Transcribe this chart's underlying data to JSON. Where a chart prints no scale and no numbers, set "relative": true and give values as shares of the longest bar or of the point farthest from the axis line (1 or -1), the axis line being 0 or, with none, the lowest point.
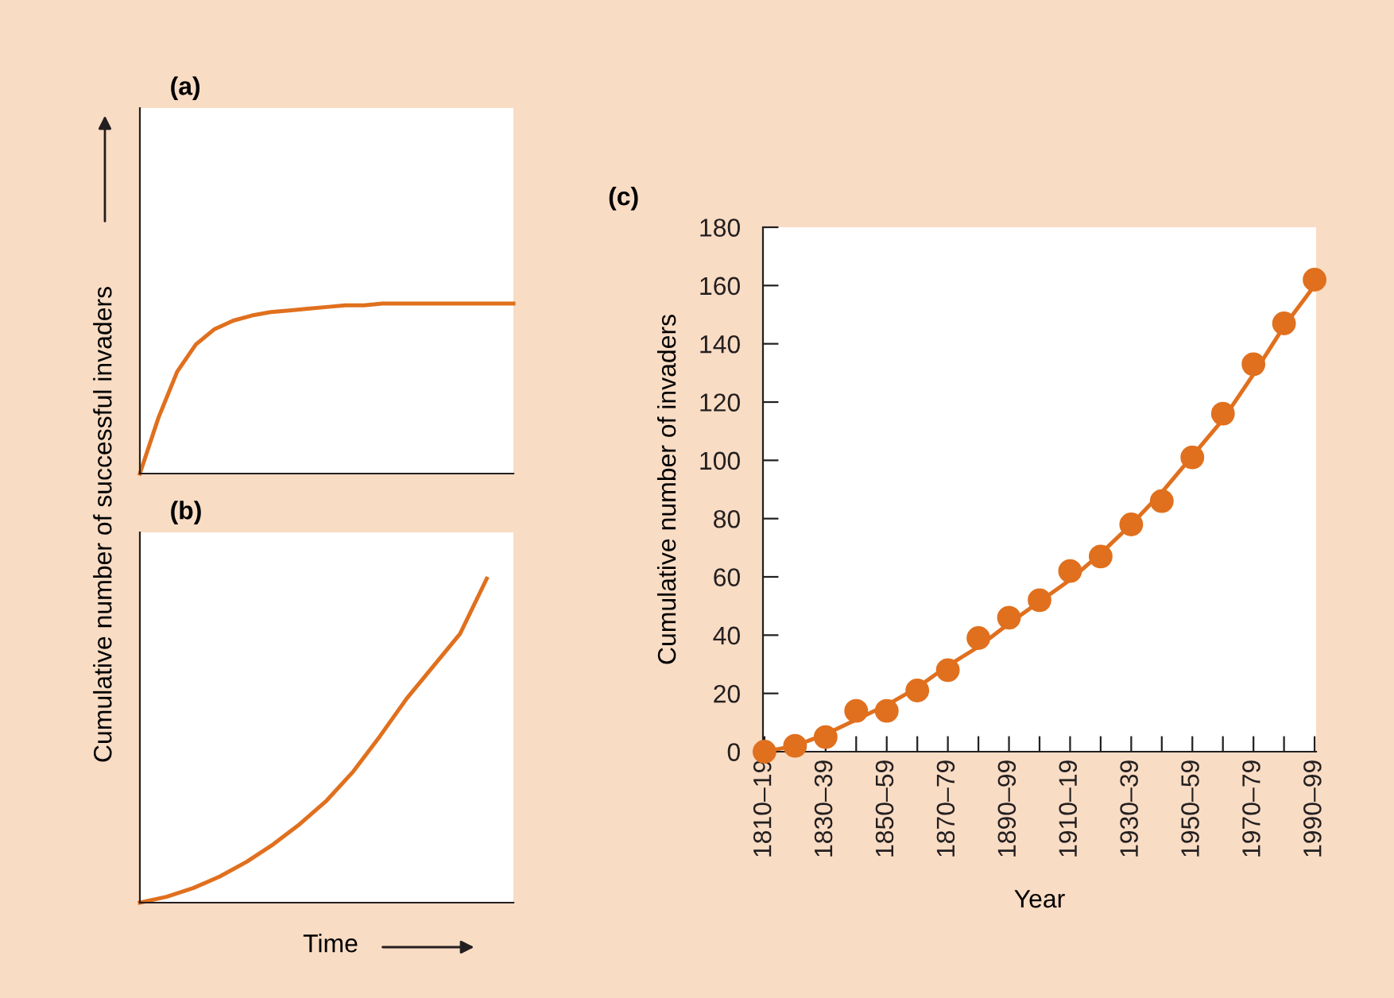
{
  "chart_data": [
    {
      "type": "line",
      "title": "(a)",
      "ylabel": "Cumulative number of successful invaders",
      "relative": true,
      "categories": [
        null,
        null,
        null,
        null,
        null,
        null,
        null,
        null,
        null,
        null,
        null,
        null,
        null,
        null,
        null,
        null,
        null,
        null,
        null,
        null,
        null
      ],
      "series": [
        {
          "color": "#e0701e",
          "values": [
            0,
            0.33,
            0.6,
            0.76,
            0.85,
            0.9,
            0.93,
            0.95,
            0.96,
            0.97,
            0.98,
            0.99,
            0.99,
            1,
            1,
            1,
            1,
            1,
            1,
            1,
            1
          ]
        }
      ]
    },
    {
      "type": "line",
      "title": "(b)",
      "xlabel": "Time",
      "relative": true,
      "categories": [
        null,
        null,
        null,
        null,
        null,
        null,
        null,
        null,
        null,
        null,
        null,
        null,
        null,
        null,
        null
      ],
      "series": [
        {
          "color": "#e0701e",
          "values": [
            0,
            0.018,
            0.045,
            0.081,
            0.126,
            0.18,
            0.243,
            0.315,
            0.405,
            0.514,
            0.63,
            0.73,
            0.83,
            1,
            null
          ]
        }
      ]
    },
    {
      "type": "scatter",
      "title": "(c)",
      "xlabel": "Year",
      "ylabel": "Cumulative number of invaders",
      "categories": [
        "1810–19",
        null,
        "1830–39",
        null,
        "1850–59",
        null,
        "1870–79",
        null,
        "1890–99",
        null,
        "1910–19",
        null,
        "1930–39",
        null,
        "1950–59",
        null,
        "1970–79",
        null,
        "1990–99"
      ],
      "ylim": [
        0,
        180
      ],
      "yticks": [
        0,
        20,
        40,
        60,
        80,
        100,
        120,
        140,
        160,
        180
      ],
      "series": [
        {
          "type": "scatter",
          "marker": "circle",
          "color": "#e0701e",
          "values": [
            0,
            2,
            5,
            14,
            14,
            21,
            28,
            39,
            46,
            52,
            62,
            67,
            78,
            86,
            101,
            116,
            133,
            147,
            162
          ]
        },
        {
          "type": "line",
          "marker": "none",
          "color": "#e0701e",
          "values": [
            0,
            2,
            6,
            11,
            16,
            22,
            29.5,
            36,
            44,
            51.5,
            59,
            68,
            78,
            89,
            101.5,
            114,
            129.5,
            146,
            160
          ]
        }
      ]
    }
  ]
}
